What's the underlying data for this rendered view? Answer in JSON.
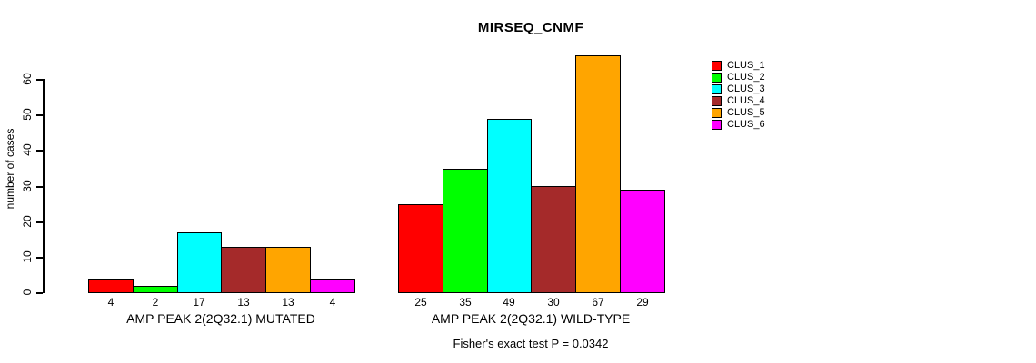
{
  "chart_data": {
    "type": "bar",
    "title": "MIRSEQ_CNMF",
    "ylabel": "number of cases",
    "xlabel": "",
    "categories": [
      "AMP PEAK 2(2Q32.1) MUTATED",
      "AMP PEAK 2(2Q32.1) WILD-TYPE"
    ],
    "series": [
      {
        "name": "CLUS_1",
        "color": "#ff0000",
        "values": [
          4,
          25
        ]
      },
      {
        "name": "CLUS_2",
        "color": "#00ff00",
        "values": [
          2,
          35
        ]
      },
      {
        "name": "CLUS_3",
        "color": "#00ffff",
        "values": [
          17,
          49
        ]
      },
      {
        "name": "CLUS_4",
        "color": "#a52a2a",
        "values": [
          13,
          30
        ]
      },
      {
        "name": "CLUS_5",
        "color": "#ffa500",
        "values": [
          13,
          67
        ]
      },
      {
        "name": "CLUS_6",
        "color": "#ff00ff",
        "values": [
          4,
          29
        ]
      }
    ],
    "yticks": [
      0,
      10,
      20,
      30,
      40,
      50,
      60
    ],
    "ylim": [
      0,
      67
    ],
    "grid": false,
    "bar_value_labels_shown": true,
    "legend_position": "right",
    "annotation": "Fisher's exact test P = 0.0342"
  },
  "legend": {
    "items": [
      {
        "label": "CLUS_1",
        "color": "#ff0000"
      },
      {
        "label": "CLUS_2",
        "color": "#00ff00"
      },
      {
        "label": "CLUS_3",
        "color": "#00ffff"
      },
      {
        "label": "CLUS_4",
        "color": "#a52a2a"
      },
      {
        "label": "CLUS_5",
        "color": "#ffa500"
      },
      {
        "label": "CLUS_6",
        "color": "#ff00ff"
      }
    ]
  },
  "colors": {
    "axis": "#000000",
    "text": "#000000",
    "background": "#ffffff",
    "bar_border": "#000000"
  }
}
